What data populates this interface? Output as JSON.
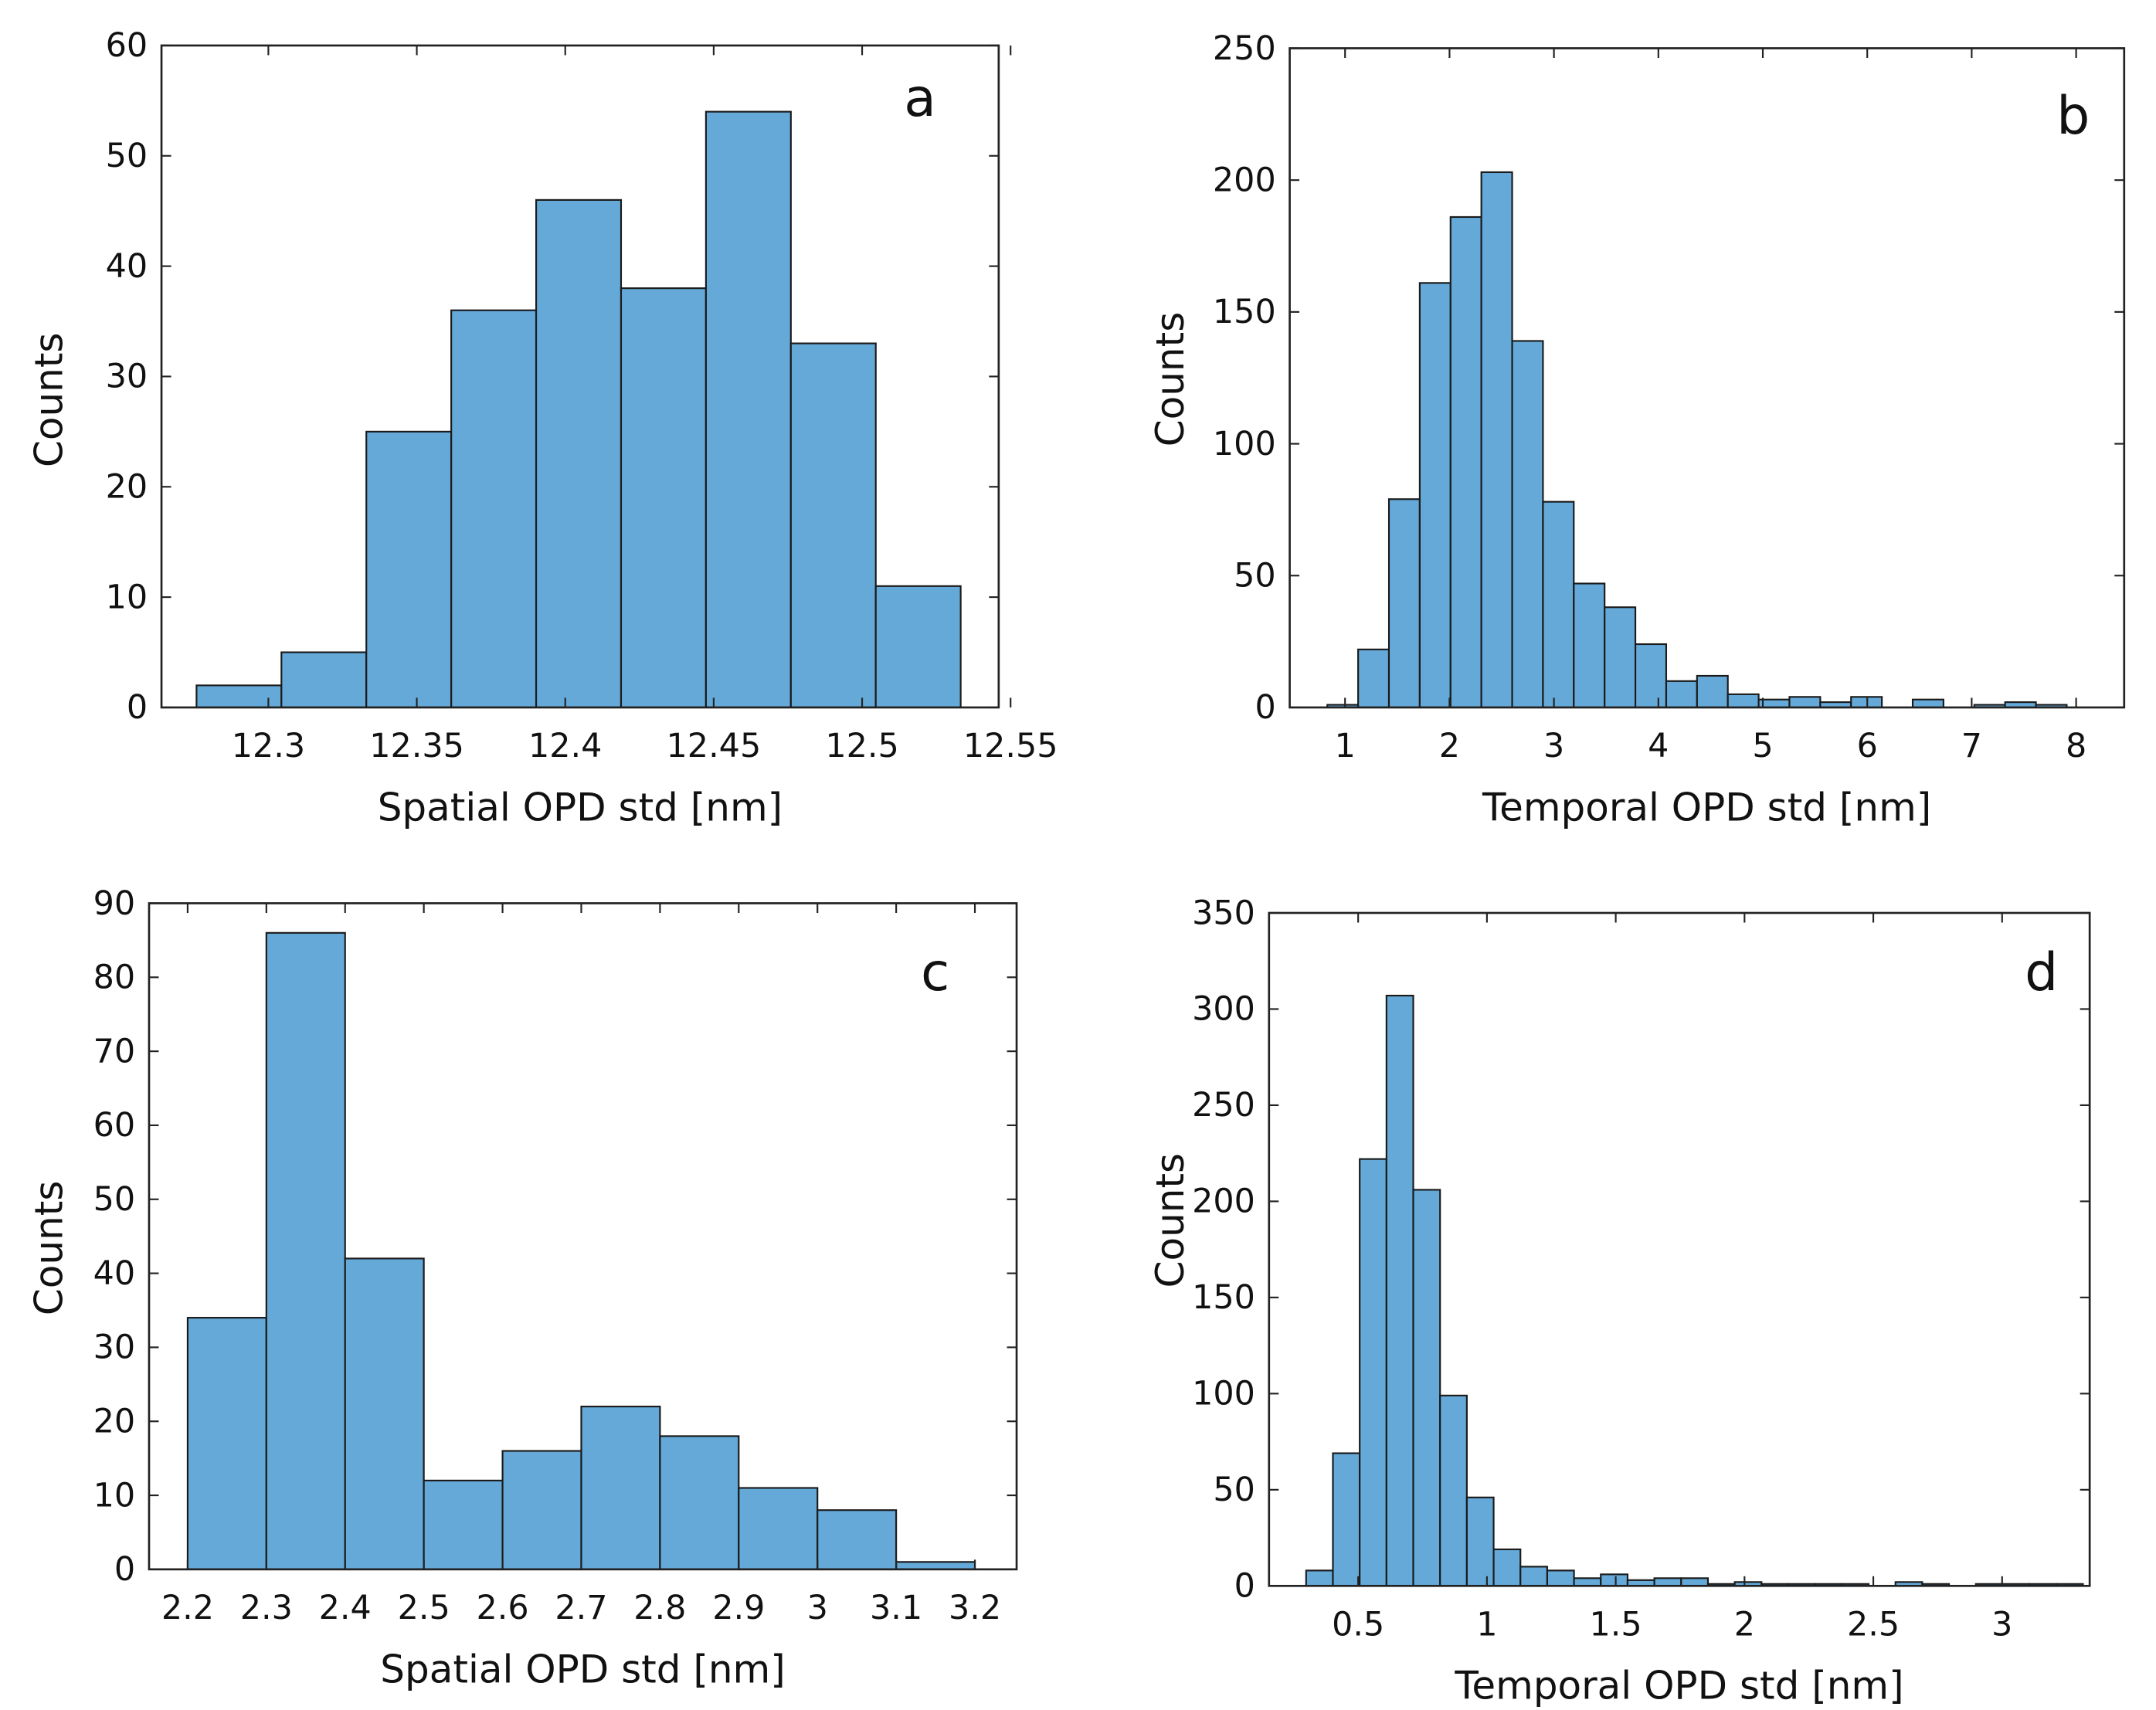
{
  "chart_data": [
    {
      "type": "histogram",
      "annotation": "a",
      "xlabel": "Spatial OPD std [nm]",
      "ylabel": "Counts",
      "color": "#65a9d8",
      "bins": [
        12.2758,
        12.3044,
        12.333,
        12.3616,
        12.3902,
        12.4188,
        12.4474,
        12.476,
        12.5046,
        12.5332
      ],
      "values": [
        2,
        5,
        25,
        36,
        46,
        38,
        54,
        33,
        11
      ],
      "xlim": [
        12.264,
        12.546
      ],
      "ylim": [
        0,
        60
      ],
      "xticks": [
        12.3,
        12.35,
        12.4,
        12.45,
        12.5,
        12.55
      ],
      "yticks": [
        0,
        10,
        20,
        30,
        40,
        50,
        60
      ]
    },
    {
      "type": "histogram",
      "annotation": "b",
      "xlabel": "Temporal OPD std [nm]",
      "ylabel": "Counts",
      "color": "#65a9d8",
      "bins": [
        0.83,
        1.125,
        1.42,
        1.715,
        2.01,
        2.305,
        2.6,
        2.895,
        3.19,
        3.485,
        3.78,
        4.075,
        4.37,
        4.665,
        4.96,
        5.255,
        5.55,
        5.845,
        6.14,
        6.435,
        6.73,
        7.025,
        7.32,
        7.615,
        7.91
      ],
      "values": [
        1,
        22,
        79,
        161,
        186,
        203,
        139,
        78,
        47,
        38,
        24,
        10,
        12,
        5,
        3,
        4,
        2,
        4,
        0,
        3,
        0,
        1,
        2,
        1
      ],
      "xlim": [
        0.47,
        8.46
      ],
      "ylim": [
        0,
        250
      ],
      "xticks": [
        1,
        2,
        3,
        4,
        5,
        6,
        7,
        8
      ],
      "yticks": [
        0,
        50,
        100,
        150,
        200,
        250
      ]
    },
    {
      "type": "histogram",
      "annotation": "c",
      "xlabel": "Spatial OPD std [nm]",
      "ylabel": "Counts",
      "color": "#65a9d8",
      "bins": [
        2.2,
        2.3,
        2.4,
        2.5,
        2.6,
        2.7,
        2.8,
        2.9,
        3.0,
        3.1,
        3.2
      ],
      "values": [
        34,
        86,
        42,
        12,
        16,
        22,
        18,
        11,
        8,
        1
      ],
      "xlim": [
        2.151,
        3.253
      ],
      "ylim": [
        0,
        90
      ],
      "xticks": [
        2.2,
        2.3,
        2.4,
        2.5,
        2.6,
        2.7,
        2.8,
        2.9,
        3,
        3.1,
        3.2
      ],
      "yticks": [
        0,
        10,
        20,
        30,
        40,
        50,
        60,
        70,
        80,
        90
      ]
    },
    {
      "type": "histogram",
      "annotation": "d",
      "xlabel": "Temporal OPD std [nm]",
      "ylabel": "Counts",
      "color": "#65a9d8",
      "bins": [
        0.298,
        0.402,
        0.506,
        0.61,
        0.714,
        0.818,
        0.922,
        1.026,
        1.13,
        1.234,
        1.338,
        1.442,
        1.546,
        1.65,
        1.754,
        1.858,
        1.962,
        2.066,
        2.17,
        2.274,
        2.378,
        2.482,
        2.586,
        2.69,
        2.794,
        2.898,
        3.002,
        3.106,
        3.21,
        3.314
      ],
      "values": [
        8,
        69,
        222,
        307,
        206,
        99,
        46,
        19,
        10,
        8,
        4,
        6,
        3,
        4,
        4,
        1,
        2,
        1,
        1,
        1,
        1,
        0,
        2,
        1,
        0,
        1,
        1,
        1,
        1
      ],
      "xlim": [
        0.154,
        3.34
      ],
      "ylim": [
        0,
        350
      ],
      "xticks": [
        0.5,
        1,
        1.5,
        2,
        2.5,
        3
      ],
      "yticks": [
        0,
        50,
        100,
        150,
        200,
        250,
        300,
        350
      ]
    }
  ]
}
